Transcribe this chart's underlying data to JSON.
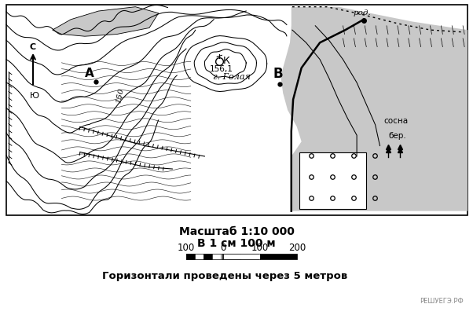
{
  "title_scale": "Масштаб 1:10 000",
  "title_scale2": "В 1 см 100 м",
  "title_contour": "Горизонтали проведены через 5 метров",
  "watermark": "РЕШУЕГЭ.РФ",
  "map_bg": "#ffffff",
  "gray_fill": "#c0c0c0"
}
